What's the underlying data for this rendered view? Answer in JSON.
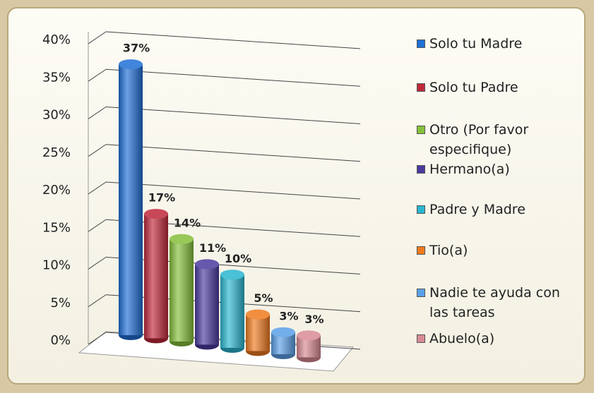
{
  "chart_data": {
    "type": "bar",
    "categories": [
      "Solo tu Madre",
      "Solo tu Padre",
      "Otro (Por favor especifique)",
      "Hermano(a)",
      "Padre y Madre",
      "Tio(a)",
      "Nadie te ayuda con las tareas",
      "Abuelo(a)"
    ],
    "values": [
      37,
      17,
      14,
      11,
      10,
      5,
      3,
      3
    ],
    "value_labels": [
      "37%",
      "17%",
      "14%",
      "11%",
      "10%",
      "5%",
      "3%",
      "3%"
    ],
    "colors": [
      "#1f6fd6",
      "#c0283a",
      "#86c03a",
      "#4a3a9e",
      "#2ab6d0",
      "#f07a1e",
      "#5aa0e8",
      "#d98a94"
    ],
    "ylim": [
      0,
      40
    ],
    "yticks": [
      {
        "value": 0,
        "label": "0%"
      },
      {
        "value": 5,
        "label": "5%"
      },
      {
        "value": 10,
        "label": "10%"
      },
      {
        "value": 15,
        "label": "15%"
      },
      {
        "value": 20,
        "label": "20%"
      },
      {
        "value": 25,
        "label": "25%"
      },
      {
        "value": 30,
        "label": "30%"
      },
      {
        "value": 35,
        "label": "35%"
      },
      {
        "value": 40,
        "label": "40%"
      }
    ],
    "grid": true
  }
}
